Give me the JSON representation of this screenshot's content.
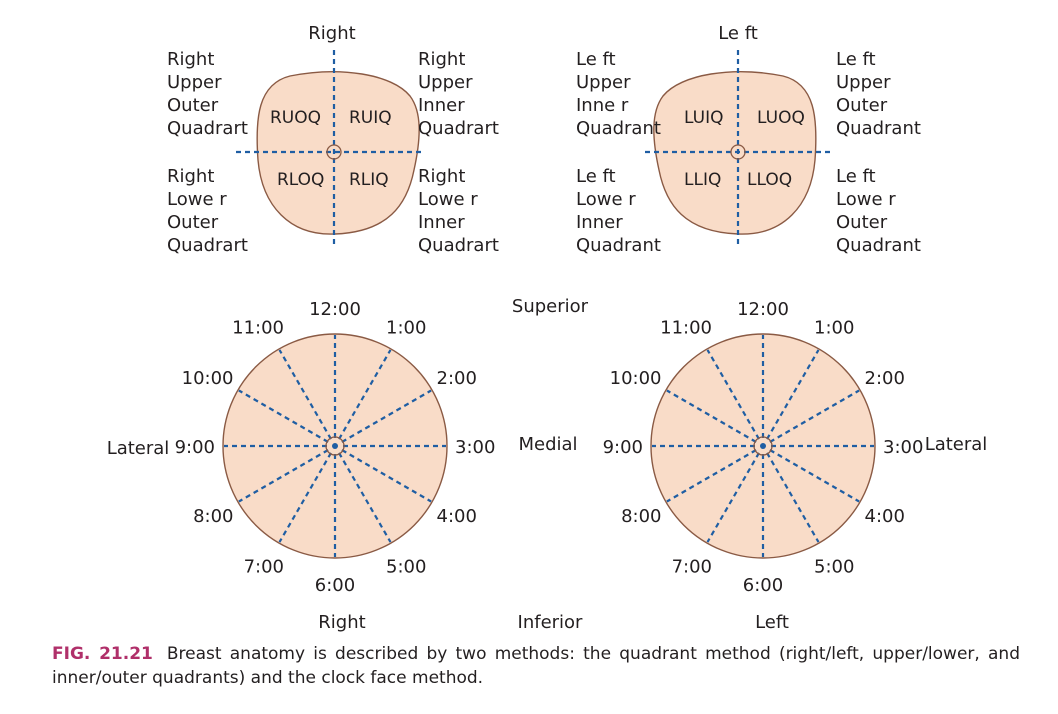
{
  "colors": {
    "fill": "#f9dcc8",
    "outline": "#8a5a44",
    "dash": "#1f5ea3",
    "text": "#231f20",
    "fig_label": "#b0306a"
  },
  "quadrant_diagrams": {
    "right": {
      "title": "Right",
      "labels": {
        "upper_outer": [
          "Right",
          "Upper",
          "Outer",
          "Quadrart"
        ],
        "upper_inner": [
          "Right",
          "Upper",
          "Inner",
          "Quadrart"
        ],
        "lower_outer": [
          "Right",
          "Lowe r",
          "Outer",
          "Quadrart"
        ],
        "lower_inner": [
          "Right",
          "Lowe r",
          "Inner",
          "Quadrart"
        ]
      },
      "abbreviations": {
        "upper_outer": "RUOQ",
        "upper_inner": "RUIQ",
        "lower_outer": "RLOQ",
        "lower_inner": "RLIQ"
      }
    },
    "left": {
      "title": "Le ft",
      "labels": {
        "upper_inner": [
          "Le ft",
          "Upper",
          "Inne r",
          "Quadrant"
        ],
        "upper_outer": [
          "Le ft",
          "Upper",
          "Outer",
          "Quadrant"
        ],
        "lower_inner": [
          "Le ft",
          "Lowe r",
          "Inner",
          "Quadrant"
        ],
        "lower_outer": [
          "Le ft",
          "Lowe r",
          "Outer",
          "Quadrant"
        ]
      },
      "abbreviations": {
        "upper_inner": "LUIQ",
        "upper_outer": "LUOQ",
        "lower_inner": "LLIQ",
        "lower_outer": "LLOQ"
      }
    }
  },
  "clock_diagrams": {
    "right": {
      "side_label": "Right",
      "lateral_label": "Lateral",
      "hours": [
        "12:00",
        "1:00",
        "2:00",
        "3:00",
        "4:00",
        "5:00",
        "6:00",
        "7:00",
        "8:00",
        "9:00",
        "10:00",
        "11:00"
      ]
    },
    "left": {
      "side_label": "Left",
      "lateral_label": "Lateral",
      "hours": [
        "12:00",
        "1:00",
        "2:00",
        "3:00",
        "4:00",
        "5:00",
        "6:00",
        "7:00",
        "8:00",
        "9:00",
        "10:00",
        "11:00"
      ]
    },
    "superior_label": "Superior",
    "medial_label": "Medial",
    "inferior_label": "Inferior"
  },
  "caption": {
    "fig_label": "FIG. 21.21",
    "text": "Breast anatomy is described by two methods: the quadrant method (right/left, upper/lower, and inner/outer quadrants) and the clock face method."
  }
}
